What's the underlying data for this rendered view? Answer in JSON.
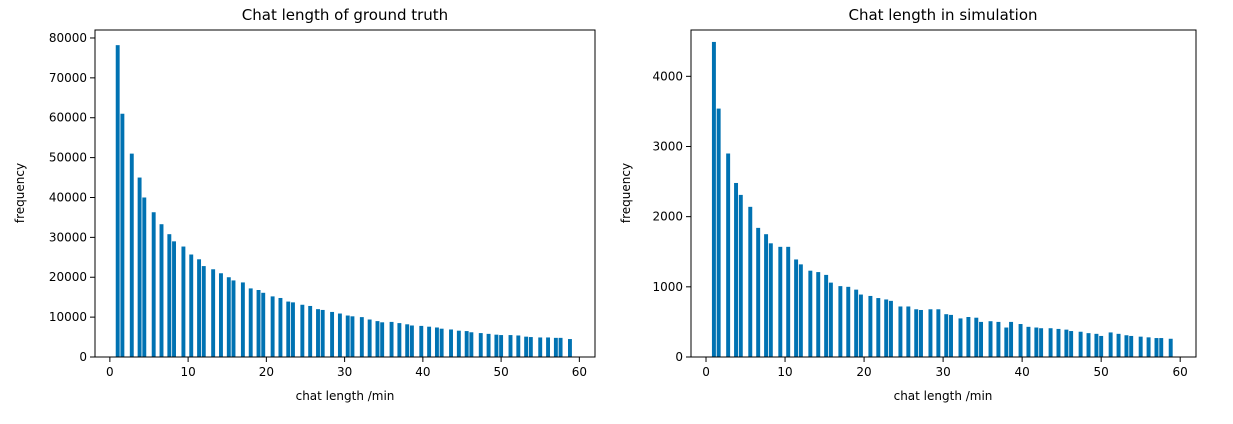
{
  "chart_data": [
    {
      "type": "bar",
      "title": "Chat length of ground truth",
      "xlabel": "chat length /min",
      "ylabel": "frequency",
      "xlim": [
        -1.9,
        62.0
      ],
      "ylim": [
        0,
        82000
      ],
      "xticks": [
        0,
        10,
        20,
        30,
        40,
        50,
        60
      ],
      "yticks": [
        0,
        10000,
        20000,
        30000,
        40000,
        50000,
        60000,
        70000,
        80000
      ],
      "grid": false,
      "bar_color": "#0072b2",
      "x": [
        1,
        1.6,
        2.8,
        3.8,
        4.4,
        5.6,
        6.6,
        7.6,
        8.2,
        9.4,
        10.4,
        11.4,
        12,
        13.2,
        14.2,
        15.2,
        15.8,
        17,
        18,
        19,
        19.6,
        20.8,
        21.8,
        22.8,
        23.4,
        24.6,
        25.6,
        26.6,
        27.2,
        28.4,
        29.4,
        30.4,
        31,
        32.2,
        33.2,
        34.2,
        34.8,
        36,
        37,
        38,
        38.6,
        39.8,
        40.8,
        41.8,
        42.4,
        43.6,
        44.6,
        45.6,
        46.2,
        47.4,
        48.4,
        49.4,
        50,
        51.2,
        52.2,
        53.2,
        53.8,
        55,
        56,
        57,
        57.6,
        58.8
      ],
      "values": [
        78200,
        61000,
        51000,
        45000,
        40000,
        36300,
        33300,
        30800,
        29000,
        27700,
        25700,
        24500,
        22800,
        22000,
        21000,
        20000,
        19200,
        18700,
        17200,
        16800,
        16100,
        15200,
        14800,
        13900,
        13700,
        13100,
        12800,
        12000,
        11800,
        11300,
        10900,
        10400,
        10200,
        10000,
        9400,
        9000,
        8700,
        8800,
        8500,
        8200,
        7900,
        7800,
        7600,
        7400,
        7100,
        6900,
        6600,
        6500,
        6200,
        6000,
        5800,
        5600,
        5500,
        5500,
        5400,
        5100,
        5000,
        4900,
        4900,
        4800,
        4800,
        4500
      ]
    },
    {
      "type": "bar",
      "title": "Chat length in simulation",
      "xlabel": "chat length /min",
      "ylabel": "frequency",
      "xlim": [
        -1.9,
        62.0
      ],
      "ylim": [
        0,
        4660
      ],
      "xticks": [
        0,
        10,
        20,
        30,
        40,
        50,
        60
      ],
      "yticks": [
        0,
        1000,
        2000,
        3000,
        4000
      ],
      "grid": false,
      "bar_color": "#0072b2",
      "x": [
        1,
        1.6,
        2.8,
        3.8,
        4.4,
        5.6,
        6.6,
        7.6,
        8.2,
        9.4,
        10.4,
        11.4,
        12,
        13.2,
        14.2,
        15.2,
        15.8,
        17,
        18,
        19,
        19.6,
        20.8,
        21.8,
        22.8,
        23.4,
        24.6,
        25.6,
        26.6,
        27.2,
        28.4,
        29.4,
        30.4,
        31,
        32.2,
        33.2,
        34.2,
        34.8,
        36,
        37,
        38,
        38.6,
        39.8,
        40.8,
        41.8,
        42.4,
        43.6,
        44.6,
        45.6,
        46.2,
        47.4,
        48.4,
        49.4,
        50,
        51.2,
        52.2,
        53.2,
        53.8,
        55,
        56,
        57,
        57.6,
        58.8
      ],
      "values": [
        4490,
        3540,
        2900,
        2480,
        2310,
        2140,
        1840,
        1750,
        1620,
        1570,
        1570,
        1390,
        1320,
        1230,
        1210,
        1170,
        1060,
        1010,
        1000,
        960,
        890,
        870,
        840,
        820,
        800,
        720,
        720,
        680,
        670,
        680,
        680,
        610,
        600,
        550,
        570,
        560,
        500,
        510,
        500,
        420,
        500,
        470,
        430,
        420,
        410,
        410,
        400,
        390,
        370,
        360,
        340,
        330,
        300,
        350,
        330,
        310,
        300,
        290,
        280,
        270,
        270,
        260
      ]
    }
  ]
}
